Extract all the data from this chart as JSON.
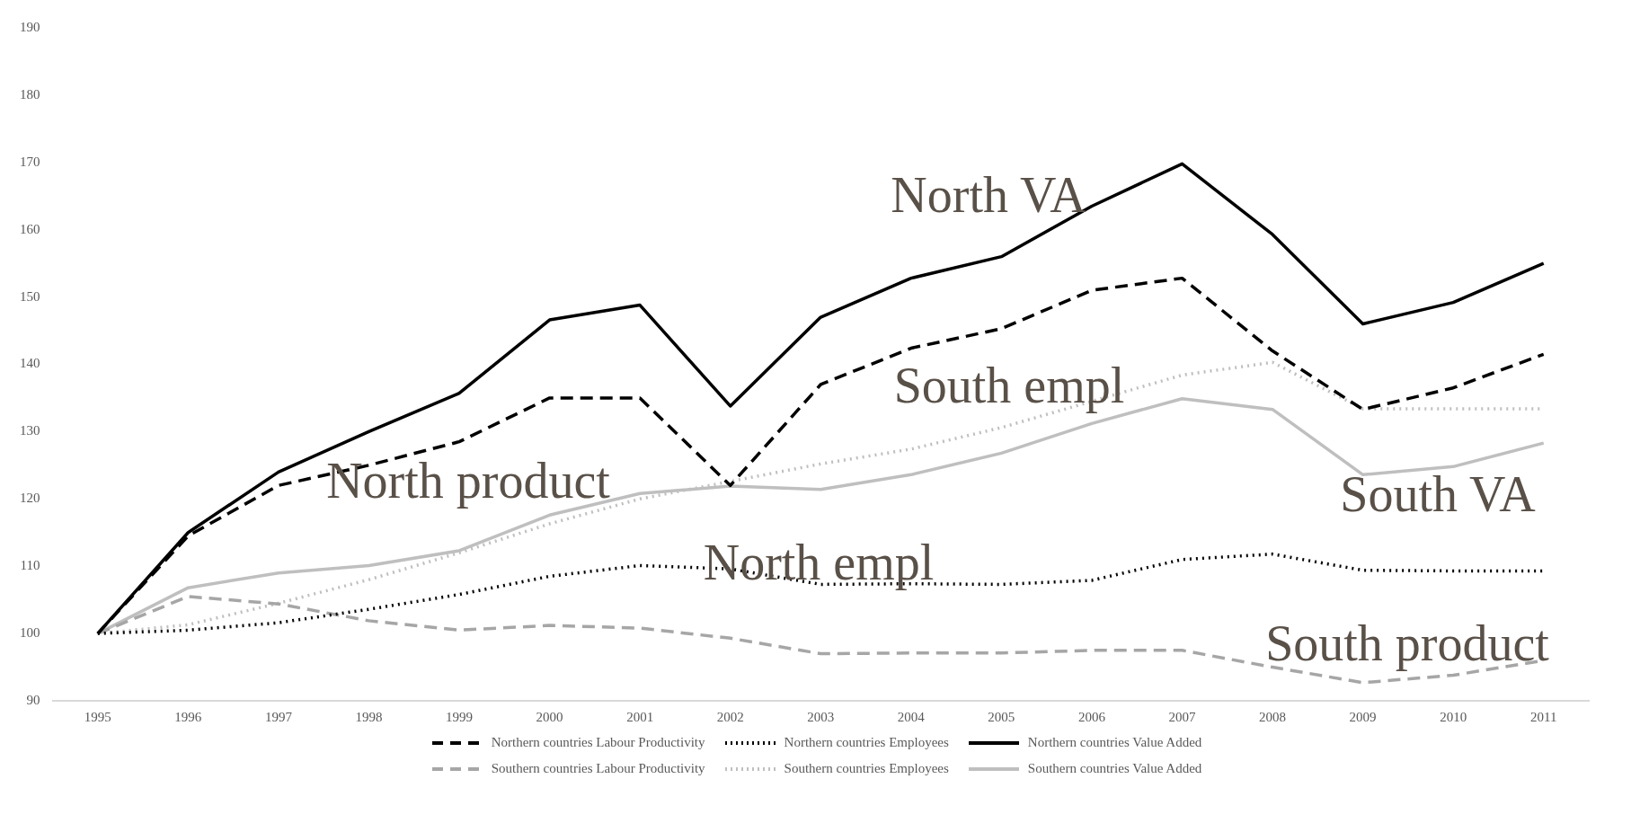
{
  "chart_data": {
    "type": "line",
    "categories": [
      "1995",
      "1996",
      "1997",
      "1998",
      "1999",
      "2000",
      "2001",
      "2002",
      "2003",
      "2004",
      "2005",
      "2006",
      "2007",
      "2008",
      "2009",
      "2010",
      "2011"
    ],
    "series": [
      {
        "name": "Northern countries Labour Productivity",
        "color": "#000000",
        "line_style": "dashed",
        "values": [
          100,
          114.5,
          122,
          125,
          128.5,
          135,
          135,
          122,
          137,
          142.4,
          145.3,
          151,
          152.8,
          142,
          133.3,
          136.5,
          141.5
        ]
      },
      {
        "name": "Northern countries Employees",
        "color": "#000000",
        "line_style": "dotted",
        "values": [
          100,
          100.5,
          101.6,
          103.6,
          105.8,
          108.5,
          110.1,
          109.6,
          107.3,
          107.4,
          107.3,
          107.9,
          111,
          111.8,
          109.4,
          109.3,
          109.3
        ]
      },
      {
        "name": "Northern countries Value Added",
        "color": "#000000",
        "line_style": "solid",
        "values": [
          100,
          115,
          124,
          130,
          135.7,
          146.6,
          148.8,
          133.8,
          147,
          152.8,
          156,
          163.5,
          169.8,
          159.3,
          146,
          149.2,
          155
        ]
      },
      {
        "name": "Southern countries Labour Productivity",
        "color": "#a6a6a6",
        "line_style": "dashed",
        "values": [
          100,
          105.5,
          104.4,
          101.9,
          100.5,
          101.2,
          100.8,
          99.3,
          97,
          97.1,
          97.1,
          97.5,
          97.5,
          95,
          92.7,
          93.8,
          96
        ]
      },
      {
        "name": "Southern countries Employees",
        "color": "#bfbfbf",
        "line_style": "dotted",
        "values": [
          100,
          101.3,
          104.5,
          108,
          112,
          116.3,
          120,
          122.6,
          125.2,
          127.4,
          130.6,
          134.5,
          138.4,
          140.3,
          133.4,
          133.4,
          133.4
        ]
      },
      {
        "name": "Southern countries Value Added",
        "color": "#bfbfbf",
        "line_style": "solid",
        "values": [
          100,
          106.8,
          109,
          110.1,
          112.3,
          117.6,
          120.8,
          121.9,
          121.4,
          123.6,
          126.8,
          131.2,
          134.9,
          133.3,
          123.6,
          124.8,
          128.3
        ]
      }
    ],
    "ylim": [
      90,
      190
    ],
    "yticks": [
      90,
      100,
      110,
      120,
      130,
      140,
      150,
      160,
      170,
      180,
      190
    ],
    "grid": false,
    "legend": "bottom",
    "marker": "none",
    "annotations": [
      "North VA",
      "North product",
      "South empl",
      "North empl",
      "South VA",
      "South product"
    ]
  }
}
